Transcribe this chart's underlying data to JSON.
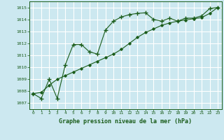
{
  "title": "Graphe pression niveau de la mer (hPa)",
  "bg_color": "#cce8f0",
  "grid_color": "#b0d8e0",
  "line_color": "#1a5c1a",
  "xlim": [
    -0.5,
    23.5
  ],
  "ylim": [
    1006.5,
    1015.5
  ],
  "xticks": [
    0,
    1,
    2,
    3,
    4,
    5,
    6,
    7,
    8,
    9,
    10,
    11,
    12,
    13,
    14,
    15,
    16,
    17,
    18,
    19,
    20,
    21,
    22,
    23
  ],
  "yticks": [
    1007,
    1008,
    1009,
    1010,
    1011,
    1012,
    1013,
    1014,
    1015
  ],
  "series1_x": [
    0,
    1,
    2,
    3,
    4,
    5,
    6,
    7,
    8,
    9,
    10,
    11,
    12,
    13,
    14,
    15,
    16,
    17,
    18,
    19,
    20,
    21,
    22,
    23
  ],
  "series1_y": [
    1007.8,
    1007.4,
    1009.0,
    1007.4,
    1010.2,
    1011.9,
    1011.9,
    1011.3,
    1011.1,
    1013.1,
    1013.85,
    1014.2,
    1014.4,
    1014.5,
    1014.55,
    1014.0,
    1013.85,
    1014.1,
    1013.85,
    1014.1,
    1014.1,
    1014.3,
    1014.9,
    1015.0
  ],
  "series2_x": [
    0,
    1,
    2,
    3,
    4,
    5,
    6,
    7,
    8,
    9,
    10,
    11,
    12,
    13,
    14,
    15,
    16,
    17,
    18,
    19,
    20,
    21,
    22,
    23
  ],
  "series2_y": [
    1007.8,
    1007.9,
    1008.5,
    1009.0,
    1009.3,
    1009.6,
    1009.9,
    1010.2,
    1010.5,
    1010.8,
    1011.1,
    1011.5,
    1012.0,
    1012.5,
    1012.9,
    1013.2,
    1013.5,
    1013.7,
    1013.85,
    1013.95,
    1014.05,
    1014.15,
    1014.5,
    1015.0
  ]
}
